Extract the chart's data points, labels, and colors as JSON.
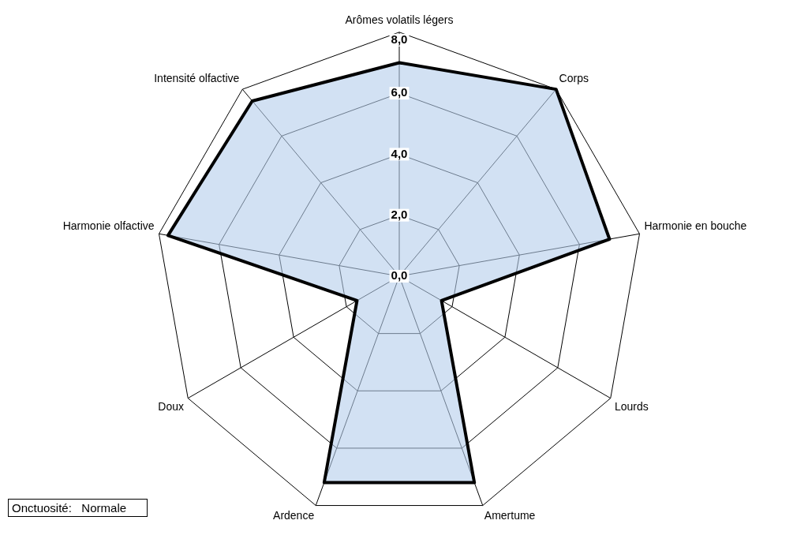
{
  "chart_data": {
    "type": "radar",
    "categories": [
      "Arômes volatils légers",
      "Corps",
      "Harmonie en bouche",
      "Lourds",
      "Amertume",
      "Ardence",
      "Doux",
      "Harmonie olfactive",
      "Intensité olfactive"
    ],
    "series": [
      {
        "color": "#000000",
        "values": [
          7.0,
          8.0,
          7.0,
          1.6,
          7.2,
          7.2,
          1.6,
          7.7,
          7.5
        ]
      }
    ],
    "ylim": [
      0,
      8
    ],
    "yticks": [
      {
        "value": 0,
        "label": "0,0"
      },
      {
        "value": 2,
        "label": "2,0"
      },
      {
        "value": 4,
        "label": "4,0"
      },
      {
        "value": 6,
        "label": "6,0"
      },
      {
        "value": 8,
        "label": "8,0"
      }
    ],
    "grid": true,
    "legend": false,
    "marker": "none",
    "annotations": [
      "Onctuosité:   Normale"
    ]
  }
}
